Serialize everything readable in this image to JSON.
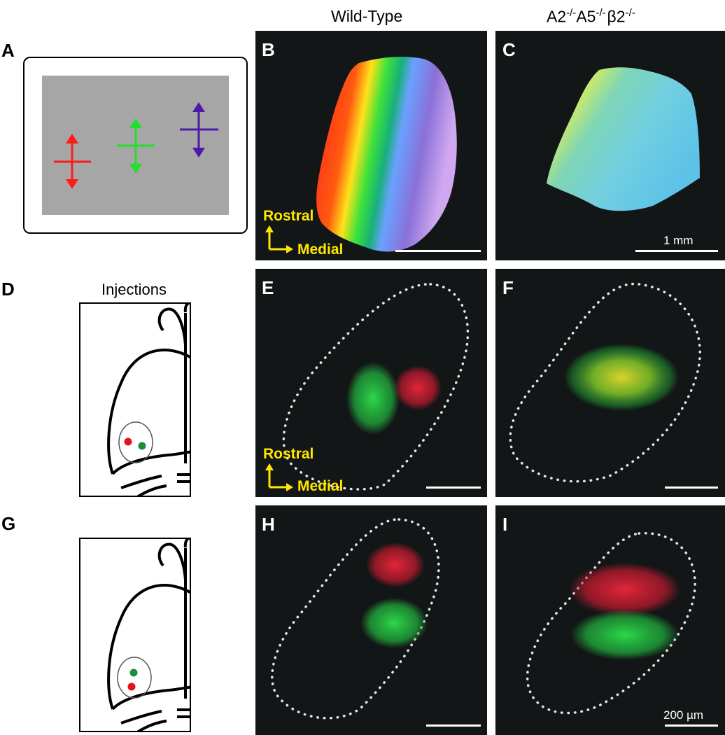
{
  "columns": {
    "wild_type": "Wild-Type",
    "mutant_A2": "A2",
    "mutant_A2_sup": "-/-",
    "mutant_A5": "A5",
    "mutant_A5_sup": "-/-",
    "mutant_b2": "β2",
    "mutant_b2_sup": "-/-"
  },
  "panel_letters": {
    "A": "A",
    "B": "B",
    "C": "C",
    "D": "D",
    "E": "E",
    "F": "F",
    "G": "G",
    "H": "H",
    "I": "I"
  },
  "orientation": {
    "rostral": "Rostral",
    "medial": "Medial"
  },
  "injections_title": "Injections",
  "scale_labels": {
    "mm": "1 mm",
    "um": "200 µm"
  },
  "colors": {
    "red": "#ff1a1a",
    "green": "#22e02a",
    "purple": "#4a1aa8",
    "stimulus_gray": "#a6a6a6",
    "panel_bg": "#131617",
    "orient_yellow": "#ffe600",
    "dot_red": "#e8101e",
    "dot_green": "#1f8c3c"
  }
}
